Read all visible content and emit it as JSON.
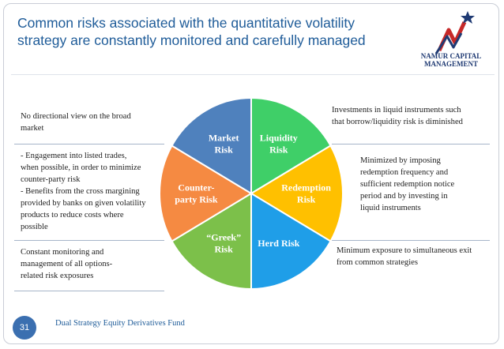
{
  "title": [
    "Common risks associated with the quantitative volatility",
    "strategy are constantly monitored and carefully managed"
  ],
  "logo": {
    "name": [
      "NAMUR CAPITAL",
      "MANAGEMENT"
    ]
  },
  "left_notes": {
    "market": [
      "No directional view on the broad",
      "market"
    ],
    "counterparty": [
      "- Engagement into listed trades,",
      "when possible, in order to minimize",
      "counter-party risk",
      "- Benefits from the cross margining",
      "provided by banks on given volatility",
      "products to reduce costs where",
      "possible"
    ],
    "greek": [
      "Constant monitoring and",
      "management of all options-",
      "related risk exposures"
    ]
  },
  "right_notes": {
    "liquidity": [
      "Investments in liquid instruments such",
      "that borrow/liquidity risk is diminished"
    ],
    "redemption": [
      "Minimized by imposing",
      "redemption frequency and",
      "sufficient redemption notice",
      "period and by investing in",
      "liquid instruments"
    ],
    "herd": [
      "Minimum exposure to simultaneous exit",
      "from common strategies"
    ]
  },
  "segments": [
    {
      "label": [
        "Liquidity",
        "Risk"
      ],
      "color": "#3fcf68"
    },
    {
      "label": [
        "Redemption",
        "Risk"
      ],
      "color": "#ffc000"
    },
    {
      "label": [
        "Herd Risk"
      ],
      "color": "#1f9ee8"
    },
    {
      "label": [
        "“Greek”",
        "Risk"
      ],
      "color": "#7cc04a"
    },
    {
      "label": [
        "Counter-",
        "party Risk"
      ],
      "color": "#f58a42"
    },
    {
      "label": [
        "Market",
        "Risk"
      ],
      "color": "#4f81bd"
    }
  ],
  "footer": {
    "page": "31",
    "text": "Dual Strategy Equity Derivatives Fund"
  }
}
